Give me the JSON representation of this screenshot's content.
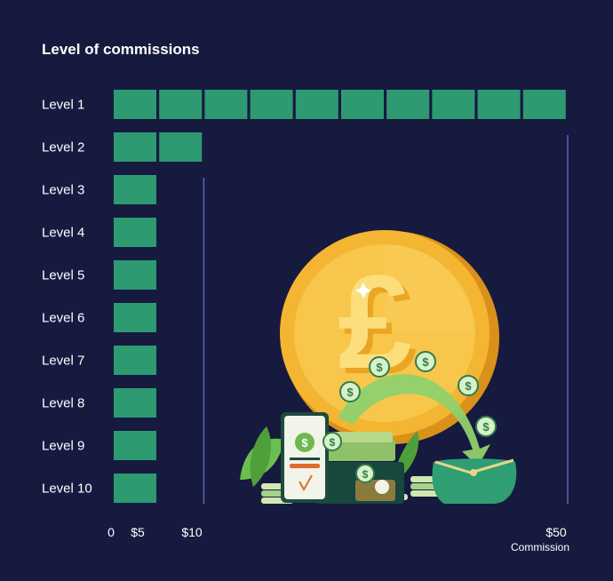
{
  "chart_data": {
    "type": "bar",
    "orientation": "horizontal",
    "title": "Level of commissions",
    "xlabel": "Commission",
    "categories": [
      "Level 1",
      "Level 2",
      "Level 3",
      "Level 4",
      "Level 5",
      "Level 6",
      "Level 7",
      "Level 8",
      "Level 9",
      "Level 10"
    ],
    "values": [
      50,
      10,
      5,
      5,
      5,
      5,
      5,
      5,
      5,
      5
    ],
    "unit_step": 5,
    "xlim": [
      0,
      50
    ],
    "ticks": [
      {
        "value": 0,
        "label": "0"
      },
      {
        "value": 5,
        "label": "$5"
      },
      {
        "value": 10,
        "label": "$10"
      },
      {
        "value": 50,
        "label": "$50"
      }
    ],
    "reference_lines": [
      10,
      50
    ],
    "colors": {
      "background": "#161a3f",
      "bar": "#2d9a72",
      "reference_line": "#5e63b8",
      "text": "#ffffff"
    }
  },
  "illustration": {
    "icons": [
      "pound-coin-icon",
      "smartphone-icon",
      "wallet-icon",
      "dollar-coin-icon",
      "cash-stack-icon",
      "leaf-icon"
    ]
  }
}
